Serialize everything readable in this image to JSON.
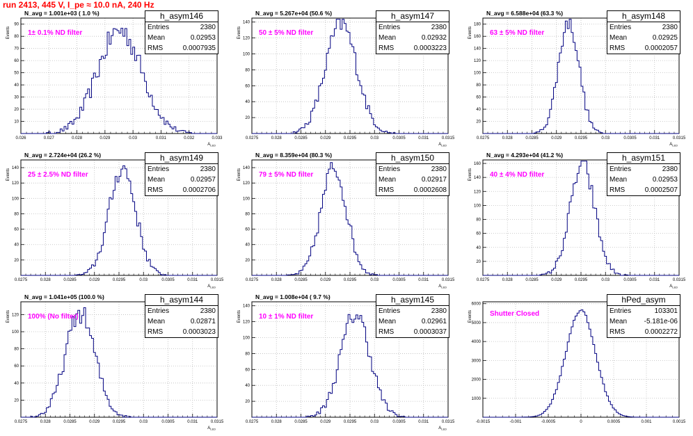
{
  "header": {
    "title": "run 2413,   445 V, I_pe ≈ 10.0 nA, 240 Hz"
  },
  "colors": {
    "title": "#ff0000",
    "annotation": "#ff00ff",
    "histogram": "#000080",
    "grid": "#bbbbbb"
  },
  "chart_data": [
    {
      "type": "histogram",
      "name": "h_asym146",
      "navg": "N_avg = 1.001e+03 ( 1.0 %)",
      "filter": "1± 0.1% ND filter",
      "stats": {
        "entries": "2380",
        "mean": "0.02953",
        "rms": "0.0007935"
      },
      "xlabel": "A_{LED}",
      "ylabel": "Events",
      "xlim": [
        0.026,
        0.033
      ],
      "ylim": [
        0,
        95
      ],
      "xticks": [
        "0.026",
        "0.027",
        "0.028",
        "0.029",
        "0.03",
        "0.031",
        "0.032",
        "0.033"
      ],
      "xtick_values": [
        0.026,
        0.027,
        0.028,
        0.029,
        0.03,
        0.031,
        0.032,
        0.033
      ],
      "yticks": [
        10,
        20,
        30,
        40,
        50,
        60,
        70,
        80,
        90
      ],
      "mean": 0.02953,
      "sigma": 0.00079,
      "peak": 85
    },
    {
      "type": "histogram",
      "name": "h_asym147",
      "navg": "N_avg = 5.267e+04 (50.6 %)",
      "filter": "50 ± 5% ND filter",
      "stats": {
        "entries": "2380",
        "mean": "0.02932",
        "rms": "0.0003223"
      },
      "xlabel": "A_{LED}",
      "ylabel": "Events",
      "xlim": [
        0.0275,
        0.0315
      ],
      "ylim": [
        0,
        145
      ],
      "xticks": [
        "0.0275",
        "0.028",
        "0.0285",
        "0.029",
        "0.0295",
        "0.03",
        "0.0305",
        "0.031",
        "0.0315"
      ],
      "xtick_values": [
        0.0275,
        0.028,
        0.0285,
        0.029,
        0.0295,
        0.03,
        0.0305,
        0.031,
        0.0315
      ],
      "yticks": [
        20,
        40,
        60,
        80,
        100,
        120,
        140
      ],
      "mean": 0.02932,
      "sigma": 0.00032,
      "peak": 138
    },
    {
      "type": "histogram",
      "name": "h_asym148",
      "navg": "N_avg = 6.588e+04 (63.3 %)",
      "filter": "63 ± 5% ND filter",
      "stats": {
        "entries": "2380",
        "mean": "0.02925",
        "rms": "0.0002057"
      },
      "xlabel": "A_{LED}",
      "ylabel": "Events",
      "xlim": [
        0.0275,
        0.0315
      ],
      "ylim": [
        0,
        190
      ],
      "xticks": [
        "0.0275",
        "0.028",
        "0.0285",
        "0.029",
        "0.0295",
        "0.03",
        "0.0305",
        "0.031",
        "0.0315"
      ],
      "xtick_values": [
        0.0275,
        0.028,
        0.0285,
        0.029,
        0.0295,
        0.03,
        0.0305,
        0.031,
        0.0315
      ],
      "yticks": [
        20,
        40,
        60,
        80,
        100,
        120,
        140,
        160,
        180
      ],
      "mean": 0.02925,
      "sigma": 0.00021,
      "peak": 185
    },
    {
      "type": "histogram",
      "name": "h_asym149",
      "navg": "N_avg = 2.724e+04 (26.2 %)",
      "filter": "25 ± 2.5% ND filter",
      "stats": {
        "entries": "2380",
        "mean": "0.02957",
        "rms": "0.0002706"
      },
      "xlabel": "A_{LED}",
      "ylabel": "Events",
      "xlim": [
        0.0275,
        0.0315
      ],
      "ylim": [
        0,
        150
      ],
      "xticks": [
        "0.0275",
        "0.028",
        "0.0285",
        "0.029",
        "0.0295",
        "0.03",
        "0.0305",
        "0.031",
        "0.0315"
      ],
      "xtick_values": [
        0.0275,
        0.028,
        0.0285,
        0.029,
        0.0295,
        0.03,
        0.0305,
        0.031,
        0.0315
      ],
      "yticks": [
        20,
        40,
        60,
        80,
        100,
        120,
        140
      ],
      "mean": 0.02957,
      "sigma": 0.00027,
      "peak": 140
    },
    {
      "type": "histogram",
      "name": "h_asym150",
      "navg": "N_avg = 8.359e+04 (80.3 %)",
      "filter": "79 ± 5% ND filter",
      "stats": {
        "entries": "2380",
        "mean": "0.02917",
        "rms": "0.0002608"
      },
      "xlabel": "A_{LED}",
      "ylabel": "Events",
      "xlim": [
        0.0275,
        0.0315
      ],
      "ylim": [
        0,
        150
      ],
      "xticks": [
        "0.0275",
        "0.028",
        "0.0285",
        "0.029",
        "0.0295",
        "0.03",
        "0.0305",
        "0.031",
        "0.0315"
      ],
      "xtick_values": [
        0.0275,
        0.028,
        0.0285,
        0.029,
        0.0295,
        0.03,
        0.0305,
        0.031,
        0.0315
      ],
      "yticks": [
        20,
        40,
        60,
        80,
        100,
        120,
        140
      ],
      "mean": 0.02917,
      "sigma": 0.00026,
      "peak": 140
    },
    {
      "type": "histogram",
      "name": "h_asym151",
      "navg": "N_avg = 4.293e+04 (41.2 %)",
      "filter": "40 ± 4% ND filter",
      "stats": {
        "entries": "2380",
        "mean": "0.02953",
        "rms": "0.0002507"
      },
      "xlabel": "A_{LED}",
      "ylabel": "Events",
      "xlim": [
        0.0275,
        0.0315
      ],
      "ylim": [
        0,
        165
      ],
      "xticks": [
        "0.0275",
        "0.028",
        "0.0285",
        "0.029",
        "0.0295",
        "0.03",
        "0.0305",
        "0.031",
        "0.0315"
      ],
      "xtick_values": [
        0.0275,
        0.028,
        0.0285,
        0.029,
        0.0295,
        0.03,
        0.0305,
        0.031,
        0.0315
      ],
      "yticks": [
        20,
        40,
        60,
        80,
        100,
        120,
        140,
        160
      ],
      "mean": 0.02953,
      "sigma": 0.00025,
      "peak": 158
    },
    {
      "type": "histogram",
      "name": "h_asym144",
      "navg": "N_avg = 1.041e+05 (100.0 %)",
      "filter": "100% (No filter)",
      "stats": {
        "entries": "2380",
        "mean": "0.02871",
        "rms": "0.0003023"
      },
      "xlabel": "A_{LED}",
      "ylabel": "Events",
      "xlim": [
        0.0275,
        0.0315
      ],
      "ylim": [
        0,
        135
      ],
      "xticks": [
        "0.0275",
        "0.028",
        "0.0285",
        "0.029",
        "0.0295",
        "0.03",
        "0.0305",
        "0.031",
        "0.0315"
      ],
      "xtick_values": [
        0.0275,
        0.028,
        0.0285,
        0.029,
        0.0295,
        0.03,
        0.0305,
        0.031,
        0.0315
      ],
      "yticks": [
        20,
        40,
        60,
        80,
        100,
        120
      ],
      "mean": 0.02871,
      "sigma": 0.0003,
      "peak": 122
    },
    {
      "type": "histogram",
      "name": "h_asym145",
      "navg": "N_avg = 1.008e+04 ( 9.7 %)",
      "filter": "10 ± 1% ND filter",
      "stats": {
        "entries": "2380",
        "mean": "0.02961",
        "rms": "0.0003037"
      },
      "xlabel": "A_{LED}",
      "ylabel": "Events",
      "xlim": [
        0.0275,
        0.0315
      ],
      "ylim": [
        0,
        145
      ],
      "xticks": [
        "0.0275",
        "0.028",
        "0.0285",
        "0.029",
        "0.0295",
        "0.03",
        "0.0305",
        "0.031",
        "0.0315"
      ],
      "xtick_values": [
        0.0275,
        0.028,
        0.0285,
        0.029,
        0.0295,
        0.03,
        0.0305,
        0.031,
        0.0315
      ],
      "yticks": [
        20,
        40,
        60,
        80,
        100,
        120,
        140
      ],
      "mean": 0.02961,
      "sigma": 0.0003,
      "peak": 130
    },
    {
      "type": "histogram",
      "name": "hPed_asym",
      "navg": "",
      "filter": "Shutter Closed",
      "stats": {
        "entries": "103301",
        "mean": "-5.181e-06",
        "rms": "0.0002272"
      },
      "xlabel": "",
      "ylabel": "Events",
      "xlim": [
        -0.0015,
        0.0015
      ],
      "ylim": [
        0,
        6100
      ],
      "xticks": [
        "-0.0015",
        "-0.001",
        "-0.0005",
        "0",
        "0.0005",
        "0.001",
        "0.0015"
      ],
      "xtick_values": [
        -0.0015,
        -0.001,
        -0.0005,
        0,
        0.0005,
        0.001,
        0.0015
      ],
      "yticks": [
        1000,
        2000,
        3000,
        4000,
        5000,
        6000
      ],
      "mean": -5.2e-06,
      "sigma": 0.000227,
      "peak": 5650
    }
  ]
}
